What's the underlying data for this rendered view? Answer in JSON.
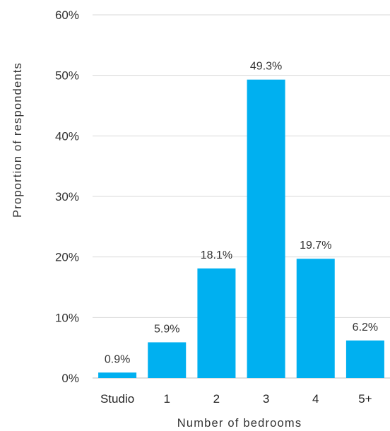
{
  "chart_data": {
    "type": "bar",
    "categories": [
      "Studio",
      "1",
      "2",
      "3",
      "4",
      "5+"
    ],
    "values": [
      0.9,
      5.9,
      18.1,
      49.3,
      19.7,
      6.2
    ],
    "data_labels": [
      "0.9%",
      "5.9%",
      "18.1%",
      "49.3%",
      "19.7%",
      "6.2%"
    ],
    "title": "",
    "xlabel": "Number of bedrooms",
    "ylabel": "Proportion of respondents",
    "ylim": [
      0,
      60
    ],
    "yticks": [
      0,
      10,
      20,
      30,
      40,
      50,
      60
    ],
    "ytick_labels": [
      "0%",
      "10%",
      "20%",
      "30%",
      "40%",
      "50%",
      "60%"
    ],
    "grid": true,
    "legend": "none",
    "colors": {
      "bar": "#00b0f0",
      "grid": "#d9d9d9",
      "text": "#333333"
    }
  }
}
